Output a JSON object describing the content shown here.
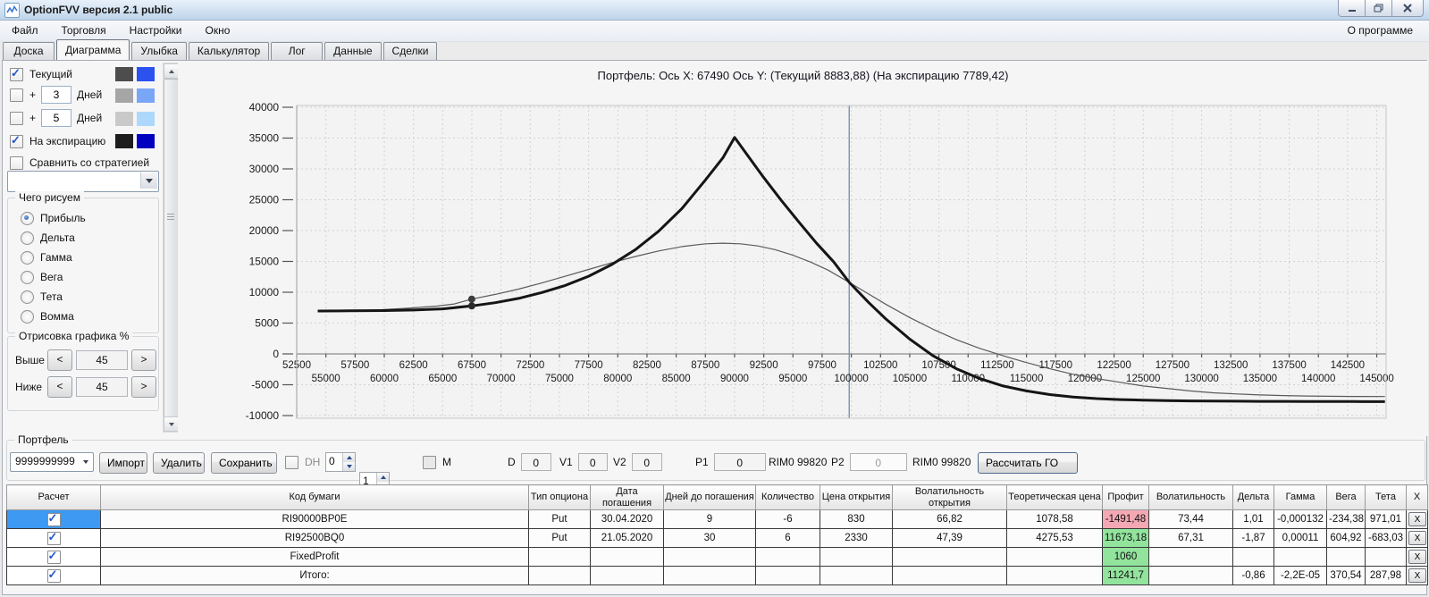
{
  "window": {
    "title": "OptionFVV версия 2.1 public"
  },
  "menubar": {
    "items": [
      "Файл",
      "Торговля",
      "Настройки",
      "Окно"
    ],
    "right": "О программе"
  },
  "tabs": {
    "items": [
      "Доска",
      "Диаграмма",
      "Улыбка",
      "Калькулятор",
      "Лог",
      "Данные",
      "Сделки"
    ],
    "active": "Диаграмма"
  },
  "sidebar": {
    "rows": [
      {
        "label": "Текущий",
        "checked": true,
        "colors": [
          "#4d4d4d",
          "#2b51ef"
        ]
      },
      {
        "plus": "+",
        "days": "3",
        "label": "Дней",
        "checked": false,
        "colors": [
          "#a6a6a6",
          "#7aa6f8"
        ]
      },
      {
        "plus": "+",
        "days": "5",
        "label": "Дней",
        "checked": false,
        "colors": [
          "#c9c9c9",
          "#aed8fb"
        ]
      },
      {
        "label": "На экспирацию",
        "checked": true,
        "colors": [
          "#1d1d1d",
          "#0000c0"
        ]
      }
    ],
    "compare": {
      "label": "Сравнить со стратегией",
      "checked": false
    },
    "strategy_value": "",
    "plot_group": {
      "title": "Чего рисуем",
      "selected": "Прибыль",
      "options": [
        "Прибыль",
        "Дельта",
        "Гамма",
        "Вега",
        "Тета",
        "Вомма"
      ]
    },
    "percent_group": {
      "title": "Отрисовка графика %",
      "rows": [
        {
          "label": "Выше",
          "dec": "<",
          "value": "45",
          "inc": ">"
        },
        {
          "label": "Ниже",
          "dec": "<",
          "value": "45",
          "inc": ">"
        }
      ]
    }
  },
  "chart": {
    "title": "Портфель: Ось X: 67490 Ось Y:  (Текущий 8883,88)  (На экспирацию 7789,42)"
  },
  "chart_data": {
    "type": "line",
    "title": "Портфель: Ось X: 67490 Ось Y: (Текущий 8883,88) (На экспирацию 7789,42)",
    "xlabel": "",
    "ylabel": "",
    "xlim": [
      52500,
      145800
    ],
    "ylim": [
      -10435,
      40290
    ],
    "grid": "dashed",
    "y_ticks": [
      40000,
      35000,
      30000,
      25000,
      20000,
      15000,
      10000,
      5000,
      0,
      -5000,
      -10000
    ],
    "x_ticks_upper": [
      52500,
      57500,
      62500,
      67500,
      72500,
      77500,
      82500,
      87500,
      92500,
      97500,
      102500,
      107500,
      112500,
      117500,
      122500,
      127500,
      132500,
      137500,
      142500
    ],
    "x_ticks_lower": [
      55000,
      60000,
      65000,
      70000,
      75000,
      80000,
      85000,
      90000,
      95000,
      100000,
      105000,
      110000,
      115000,
      120000,
      125000,
      130000,
      135000,
      140000,
      145000
    ],
    "x_grid_step": 2500,
    "price_marker_x": 99820,
    "cursor": {
      "x": 67490,
      "current_y": 8883.88,
      "expiration_y": 7789.42
    },
    "series": [
      {
        "name": "Текущий",
        "color": "#5a5a5a",
        "width": 1.2,
        "points": [
          [
            54300,
            6900
          ],
          [
            57000,
            7000
          ],
          [
            59500,
            7150
          ],
          [
            62000,
            7400
          ],
          [
            64500,
            7750
          ],
          [
            66000,
            8100
          ],
          [
            67490,
            8884
          ],
          [
            69500,
            9650
          ],
          [
            71500,
            10500
          ],
          [
            73500,
            11500
          ],
          [
            75500,
            12600
          ],
          [
            77500,
            13700
          ],
          [
            79500,
            14800
          ],
          [
            81500,
            15800
          ],
          [
            83500,
            16700
          ],
          [
            85500,
            17400
          ],
          [
            87500,
            17850
          ],
          [
            89000,
            17950
          ],
          [
            90500,
            17850
          ],
          [
            92000,
            17500
          ],
          [
            93500,
            16900
          ],
          [
            95000,
            16000
          ],
          [
            96500,
            14900
          ],
          [
            98000,
            13600
          ],
          [
            99820,
            11600
          ],
          [
            101500,
            9700
          ],
          [
            103000,
            8000
          ],
          [
            105000,
            5900
          ],
          [
            107000,
            4000
          ],
          [
            109000,
            2300
          ],
          [
            111000,
            900
          ],
          [
            113000,
            -300
          ],
          [
            115000,
            -1400
          ],
          [
            117000,
            -2400
          ],
          [
            119000,
            -3300
          ],
          [
            121000,
            -4000
          ],
          [
            123000,
            -4600
          ],
          [
            125000,
            -5200
          ],
          [
            127000,
            -5600
          ],
          [
            129000,
            -6000
          ],
          [
            131000,
            -6300
          ],
          [
            133000,
            -6500
          ],
          [
            135000,
            -6650
          ],
          [
            137000,
            -6750
          ],
          [
            139000,
            -6820
          ],
          [
            141000,
            -6870
          ],
          [
            143000,
            -6900
          ],
          [
            145700,
            -6920
          ]
        ]
      },
      {
        "name": "На экспирацию",
        "color": "#151515",
        "width": 3,
        "points": [
          [
            54300,
            6950
          ],
          [
            57000,
            6980
          ],
          [
            60000,
            7030
          ],
          [
            62500,
            7120
          ],
          [
            65000,
            7300
          ],
          [
            67490,
            7789
          ],
          [
            69500,
            8300
          ],
          [
            71500,
            9000
          ],
          [
            73500,
            9950
          ],
          [
            75500,
            11100
          ],
          [
            77500,
            12600
          ],
          [
            79500,
            14500
          ],
          [
            81500,
            16900
          ],
          [
            83500,
            19900
          ],
          [
            85500,
            23600
          ],
          [
            87500,
            28200
          ],
          [
            89000,
            31800
          ],
          [
            90000,
            35100
          ],
          [
            91000,
            32500
          ],
          [
            92500,
            28600
          ],
          [
            94000,
            24900
          ],
          [
            95500,
            21400
          ],
          [
            97000,
            18000
          ],
          [
            98500,
            14900
          ],
          [
            99820,
            11600
          ],
          [
            101500,
            8300
          ],
          [
            103000,
            5600
          ],
          [
            105000,
            2400
          ],
          [
            107000,
            -300
          ],
          [
            109000,
            -2400
          ],
          [
            111000,
            -4000
          ],
          [
            113000,
            -5200
          ],
          [
            115000,
            -6000
          ],
          [
            117000,
            -6600
          ],
          [
            119000,
            -7000
          ],
          [
            121000,
            -7250
          ],
          [
            123000,
            -7400
          ],
          [
            125000,
            -7500
          ],
          [
            127000,
            -7570
          ],
          [
            129000,
            -7620
          ],
          [
            131000,
            -7650
          ],
          [
            133000,
            -7670
          ],
          [
            135000,
            -7690
          ],
          [
            137000,
            -7700
          ],
          [
            139000,
            -7710
          ],
          [
            141000,
            -7720
          ],
          [
            143000,
            -7730
          ],
          [
            145700,
            -7740
          ]
        ]
      }
    ]
  },
  "portfolio": {
    "group_label": "Портфель",
    "account_value": "9999999999",
    "buttons": {
      "import": "Импорт",
      "delete": "Удалить",
      "save": "Сохранить",
      "calc_go": "Рассчитать ГО"
    },
    "dh": {
      "label": "DH",
      "checked": false,
      "spin1": "0",
      "spin2": "1"
    },
    "m": {
      "label": "M",
      "checked": false
    },
    "fields": {
      "d_label": "D",
      "d": "0",
      "v1_label": "V1",
      "v1": "0",
      "v2_label": "V2",
      "v2": "0",
      "p1_label": "P1",
      "p1": "0",
      "rim1": "RIM0 99820",
      "p2_label": "P2",
      "p2": "0",
      "rim2": "RIM0 99820"
    }
  },
  "table": {
    "columns": [
      "Расчет",
      "Код бумаги",
      "Тип опциона",
      "Дата погашения",
      "Дней до погашения",
      "Количество",
      "Цена открытия",
      "Волатильность открытия",
      "Теоретическая цена",
      "Профит",
      "Волатильность",
      "Дельта",
      "Гамма",
      "Вега",
      "Тета",
      "X"
    ],
    "delete_label": "X",
    "selection_color": "#3d99f2",
    "profit_colors": {
      "positive": "#92e49d",
      "negative": "#f3a8b4"
    },
    "rows": [
      {
        "checked": true,
        "selected": true,
        "profit_state": "negative",
        "cells": [
          "RI90000BP0E",
          "Put",
          "30.04.2020",
          "9",
          "-6",
          "830",
          "66,82",
          "1078,58",
          "-1491,48",
          "73,44",
          "1,01",
          "-0,000132",
          "-234,38",
          "971,01"
        ]
      },
      {
        "checked": true,
        "selected": false,
        "profit_state": "positive",
        "cells": [
          "RI92500BQ0",
          "Put",
          "21.05.2020",
          "30",
          "6",
          "2330",
          "47,39",
          "4275,53",
          "11673,18",
          "67,31",
          "-1,87",
          "0,00011",
          "604,92",
          "-683,03"
        ]
      },
      {
        "checked": true,
        "selected": false,
        "profit_state": "positive",
        "cells": [
          "FixedProfit",
          "",
          "",
          "",
          "",
          "",
          "",
          "",
          "1060",
          "",
          "",
          "",
          "",
          ""
        ]
      },
      {
        "checked": true,
        "selected": false,
        "profit_state": "positive",
        "cells": [
          "Итого:",
          "",
          "",
          "",
          "",
          "",
          "",
          "",
          "11241,7",
          "",
          "-0,86",
          "-2,2E-05",
          "370,54",
          "287,98"
        ]
      }
    ]
  }
}
